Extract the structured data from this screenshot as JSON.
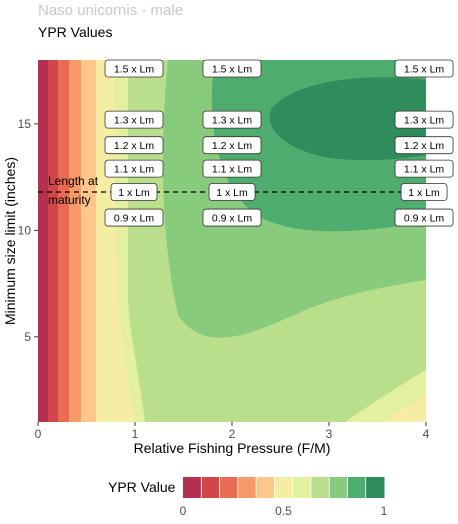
{
  "chart_data": {
    "type": "contour",
    "title": "Naso unicornis - male",
    "subtitle": "YPR Values",
    "xlabel": "Relative Fishing Pressure (F/M)",
    "ylabel": "Minimum size limit (inches)",
    "xlim": [
      0,
      4
    ],
    "ylim": [
      1,
      18
    ],
    "x_ticks": [
      "0",
      "1",
      "2",
      "3",
      "4"
    ],
    "y_ticks": [
      "5",
      "10",
      "15"
    ],
    "y_tick_values": [
      5,
      10,
      15
    ],
    "reference_line": {
      "y": 11.8,
      "style": "dashed",
      "label_line1": "Length at",
      "label_line2": "maturity"
    },
    "lm_labels": [
      {
        "text": "1.5 x Lm",
        "y": 17.6
      },
      {
        "text": "1.3 x Lm",
        "y": 15.2
      },
      {
        "text": "1.2 x Lm",
        "y": 14.0
      },
      {
        "text": "1.1 x Lm",
        "y": 12.9
      },
      {
        "text": "1 x Lm",
        "y": 11.8
      },
      {
        "text": "0.9 x Lm",
        "y": 10.6
      }
    ],
    "lm_label_x": [
      0.99,
      2.0,
      3.98
    ],
    "legend": {
      "title": "YPR Value",
      "ticks": [
        "0",
        "0.5",
        "1"
      ],
      "tick_values": [
        0,
        0.5,
        1
      ],
      "colors": [
        "#b5304f",
        "#d2454a",
        "#ea6a52",
        "#f69a6a",
        "#fbc78a",
        "#f6eda4",
        "#e2f0a0",
        "#b9df8d",
        "#88cb7c",
        "#4ead6e",
        "#2f8c5b"
      ]
    },
    "colors": {
      "band1": "#b5304f",
      "band2": "#d2454a",
      "band3": "#ea6a52",
      "band4": "#f69a6a",
      "band5": "#fbc78a",
      "band6": "#f6eda4",
      "band7": "#e2f0a0",
      "band8": "#b9df8d",
      "band9": "#88cb7c",
      "band10": "#4ead6e",
      "band11": "#2f8c5b"
    }
  }
}
